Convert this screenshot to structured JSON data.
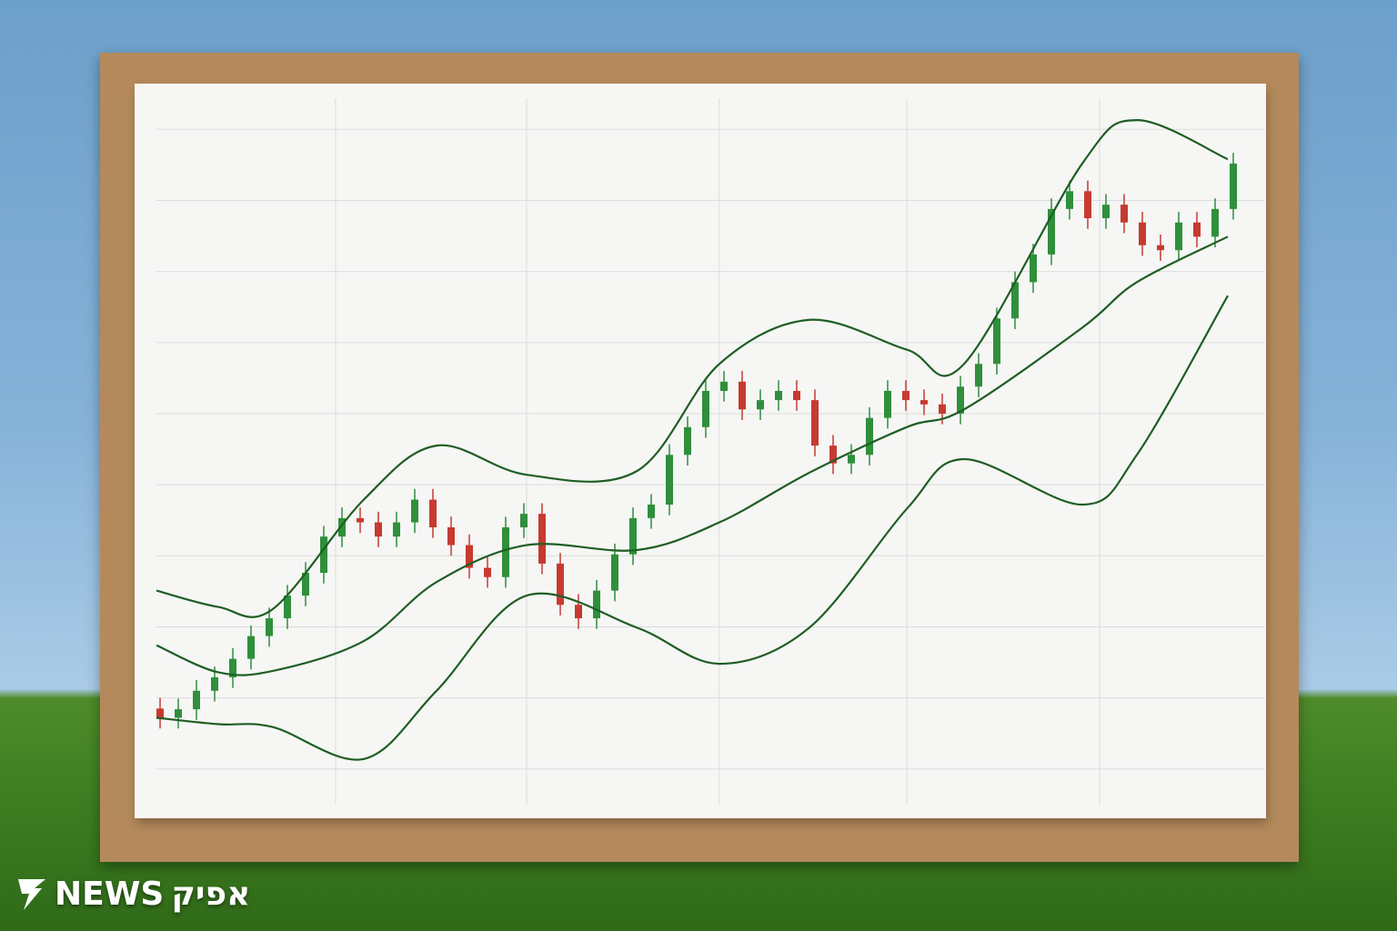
{
  "chart_data": {
    "type": "candlestick",
    "x": [
      0,
      1,
      2,
      3,
      4,
      5,
      6,
      7,
      8,
      9,
      10,
      11,
      12,
      13,
      14,
      15,
      16,
      17,
      18,
      19,
      20,
      21,
      22,
      23,
      24,
      25,
      26,
      27,
      28,
      29,
      30,
      31,
      32,
      33,
      34,
      35,
      36,
      37,
      38,
      39,
      40,
      41,
      42,
      43,
      44,
      45,
      46,
      47,
      48,
      49,
      50,
      51,
      52,
      53,
      54,
      55,
      56,
      57,
      58,
      59
    ],
    "open": [
      0.85,
      0.72,
      0.84,
      1.1,
      1.29,
      1.55,
      1.87,
      2.12,
      2.44,
      2.76,
      3.27,
      3.53,
      3.47,
      3.27,
      3.47,
      3.79,
      3.4,
      3.15,
      2.83,
      2.7,
      3.4,
      3.59,
      2.89,
      2.31,
      2.12,
      2.51,
      3.02,
      3.53,
      3.72,
      4.42,
      4.81,
      5.32,
      5.45,
      5.06,
      5.19,
      5.32,
      5.19,
      4.55,
      4.3,
      4.42,
      4.94,
      5.32,
      5.19,
      5.13,
      5.0,
      5.38,
      5.7,
      6.34,
      6.85,
      7.24,
      7.88,
      8.13,
      7.75,
      7.94,
      7.69,
      7.37,
      7.3,
      7.69,
      7.49,
      7.88
    ],
    "high": [
      1.0,
      0.99,
      1.25,
      1.44,
      1.7,
      2.02,
      2.27,
      2.59,
      2.91,
      3.42,
      3.68,
      3.68,
      3.62,
      3.62,
      3.94,
      3.94,
      3.55,
      3.3,
      2.98,
      3.55,
      3.74,
      3.74,
      3.04,
      2.46,
      2.66,
      3.17,
      3.68,
      3.87,
      4.57,
      4.96,
      5.47,
      5.6,
      5.6,
      5.34,
      5.47,
      5.47,
      5.34,
      4.7,
      4.57,
      5.09,
      5.47,
      5.47,
      5.34,
      5.28,
      5.53,
      5.85,
      6.49,
      7.0,
      7.39,
      8.03,
      8.28,
      8.28,
      8.09,
      8.09,
      7.84,
      7.52,
      7.84,
      7.84,
      8.03,
      8.67
    ],
    "low": [
      0.57,
      0.57,
      0.69,
      0.95,
      1.14,
      1.4,
      1.72,
      1.97,
      2.29,
      2.61,
      3.12,
      3.32,
      3.12,
      3.12,
      3.32,
      3.25,
      3.0,
      2.68,
      2.55,
      2.55,
      3.25,
      2.74,
      2.16,
      1.97,
      1.97,
      2.36,
      2.87,
      3.38,
      3.57,
      4.27,
      4.66,
      5.17,
      4.91,
      4.91,
      5.04,
      5.04,
      4.4,
      4.15,
      4.15,
      4.27,
      4.79,
      5.04,
      4.98,
      4.85,
      4.85,
      5.23,
      5.55,
      6.19,
      6.7,
      7.09,
      7.73,
      7.6,
      7.6,
      7.54,
      7.22,
      7.15,
      7.15,
      7.34,
      7.34,
      7.73
    ],
    "close": [
      0.72,
      0.84,
      1.1,
      1.29,
      1.55,
      1.87,
      2.12,
      2.44,
      2.76,
      3.27,
      3.53,
      3.47,
      3.27,
      3.47,
      3.79,
      3.4,
      3.15,
      2.83,
      2.7,
      3.4,
      3.59,
      2.89,
      2.31,
      2.12,
      2.51,
      3.02,
      3.53,
      3.72,
      4.42,
      4.81,
      5.32,
      5.45,
      5.06,
      5.19,
      5.32,
      5.19,
      4.55,
      4.3,
      4.42,
      4.94,
      5.32,
      5.19,
      5.13,
      5.0,
      5.38,
      5.7,
      6.34,
      6.85,
      7.24,
      7.88,
      8.13,
      7.75,
      7.94,
      7.69,
      7.37,
      7.3,
      7.69,
      7.49,
      7.88,
      8.52
    ],
    "up_color": "#2f8f3b",
    "down_color": "#c63a30",
    "series": [
      {
        "color": "#1f5e24",
        "x": [
          -0.2,
          3.2,
          6.2,
          11.2,
          15.2,
          20.15,
          26.2,
          30.75,
          35.7,
          41.05,
          44.2,
          50.7,
          53.7,
          58.7
        ],
        "values": [
          2.51,
          2.28,
          2.25,
          3.79,
          4.55,
          4.14,
          4.19,
          5.7,
          6.32,
          5.9,
          5.7,
          8.52,
          9.13,
          8.58
        ]
      },
      {
        "color": "#1f5e24",
        "x": [
          -0.2,
          3.2,
          6.2,
          11.2,
          15.2,
          20.15,
          26.2,
          30.75,
          35.7,
          41.05,
          44.2,
          50.7,
          53.7,
          58.7
        ],
        "values": [
          1.74,
          1.36,
          1.38,
          1.8,
          2.63,
          3.15,
          3.08,
          3.47,
          4.17,
          4.81,
          5.06,
          6.21,
          6.85,
          7.49
        ]
      },
      {
        "color": "#1f5e24",
        "x": [
          -0.2,
          3.2,
          6.2,
          11.2,
          15.2,
          20.15,
          26.2,
          30.75,
          35.7,
          41.05,
          44.2,
          50.7,
          53.7,
          58.7
        ],
        "values": [
          0.72,
          0.63,
          0.59,
          0.14,
          1.1,
          2.44,
          1.99,
          1.48,
          1.99,
          3.66,
          4.36,
          3.72,
          4.42,
          6.66
        ]
      }
    ],
    "xlim": [
      -0.2,
      60.7
    ],
    "ylim": [
      -0.31,
      9.49
    ],
    "xticks": [
      9.65,
      20.15,
      30.75,
      41.05,
      51.65
    ],
    "yticks": [
      0,
      1,
      2,
      3,
      4,
      5,
      6,
      7,
      8,
      9
    ],
    "grid": true
  },
  "logo": {
    "latin": "NEWS",
    "hebrew": "אפיק"
  }
}
